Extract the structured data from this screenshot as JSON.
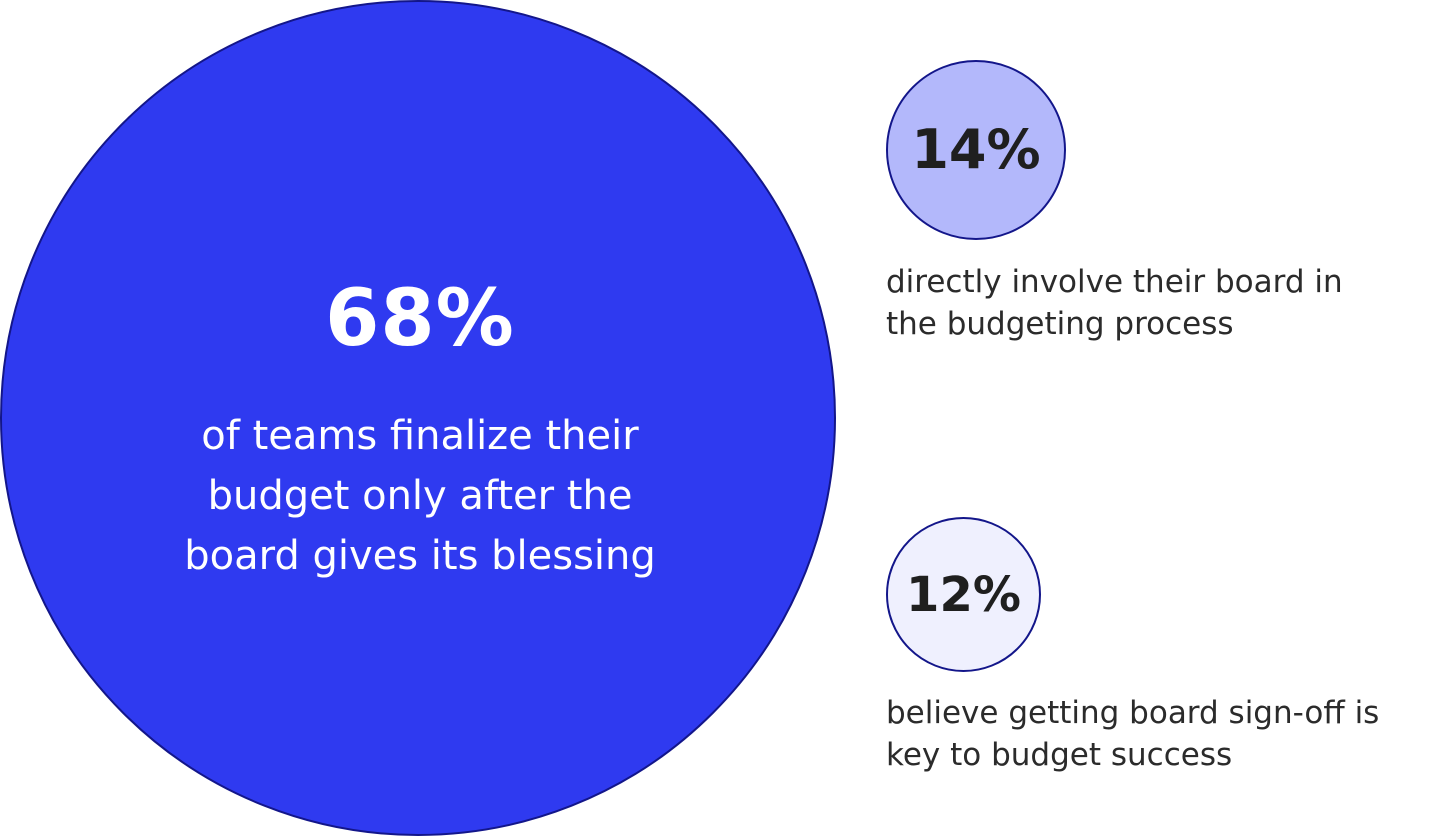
{
  "chart_data": {
    "type": "bubble-stats",
    "items": [
      {
        "value": 68,
        "label": "68%",
        "description_lines": [
          "of teams finalize their",
          "budget only after the",
          "board gives its blessing"
        ],
        "color": "#2f3af0"
      },
      {
        "value": 14,
        "label": "14%",
        "description_lines": [
          "directly involve their board in",
          "the budgeting process"
        ],
        "color": "#b3b8fb"
      },
      {
        "value": 12,
        "label": "12%",
        "description_lines": [
          "believe getting board sign-off is",
          "key to budget success"
        ],
        "color": "#eff0fe"
      }
    ],
    "border_color": "#13168a"
  }
}
